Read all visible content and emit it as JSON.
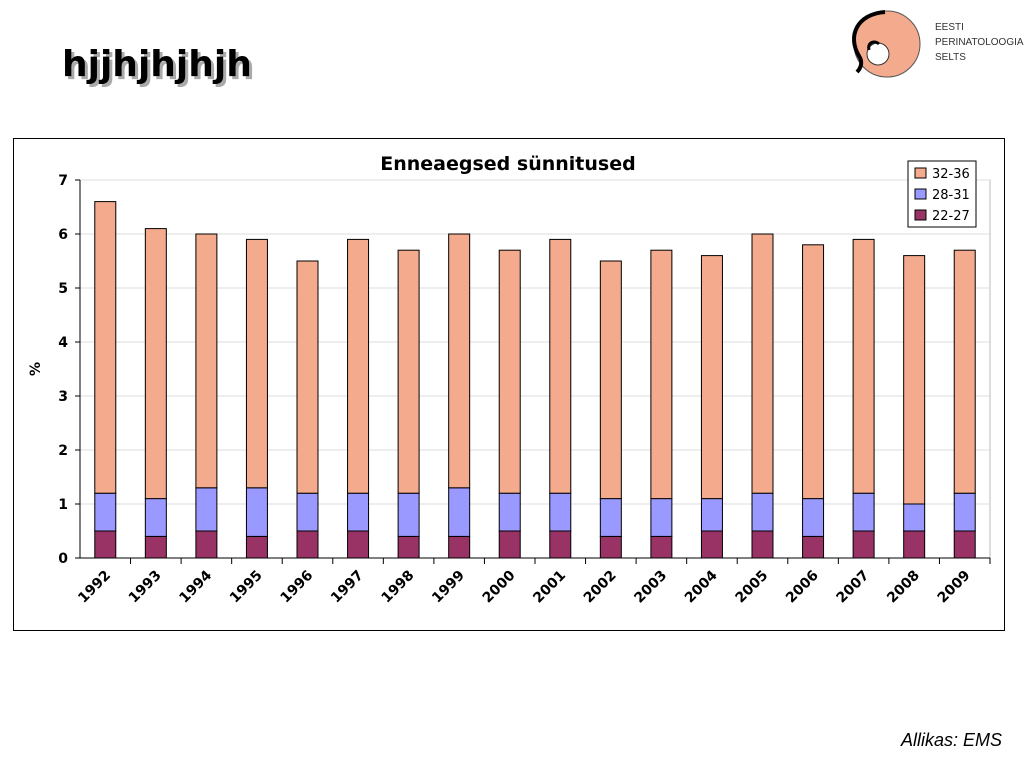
{
  "slide": {
    "title": "hjjhjhjhjh",
    "source": "Allikas: EMS"
  },
  "logo": {
    "lines": [
      "EESTI",
      "PERINATOLOOGIA",
      "SELTS"
    ]
  },
  "colors": {
    "32-36": "#f4aa8c",
    "28-31": "#9999ff",
    "22-27": "#993366"
  },
  "chart_data": {
    "type": "bar",
    "stacked": true,
    "title": "Enneaegsed sünnitused",
    "xlabel": "",
    "ylabel": "%",
    "ylim": [
      0,
      7
    ],
    "yticks": [
      "0",
      "1",
      "2",
      "3",
      "4",
      "5",
      "6",
      "7"
    ],
    "grid": true,
    "legend_position": "top-right",
    "categories": [
      "1992",
      "1993",
      "1994",
      "1995",
      "1996",
      "1997",
      "1998",
      "1999",
      "2000",
      "2001",
      "2002",
      "2003",
      "2004",
      "2005",
      "2006",
      "2007",
      "2008",
      "2009"
    ],
    "series": [
      {
        "name": "22-27",
        "values": [
          0.5,
          0.4,
          0.5,
          0.4,
          0.5,
          0.5,
          0.4,
          0.4,
          0.5,
          0.5,
          0.4,
          0.4,
          0.5,
          0.5,
          0.4,
          0.5,
          0.5,
          0.5
        ]
      },
      {
        "name": "28-31",
        "values": [
          0.7,
          0.7,
          0.8,
          0.9,
          0.7,
          0.7,
          0.8,
          0.9,
          0.7,
          0.7,
          0.7,
          0.7,
          0.6,
          0.7,
          0.7,
          0.7,
          0.5,
          0.7
        ]
      },
      {
        "name": "32-36",
        "values": [
          5.4,
          5.0,
          4.7,
          4.6,
          4.3,
          4.7,
          4.5,
          4.7,
          4.5,
          4.7,
          4.4,
          4.6,
          4.5,
          4.8,
          4.7,
          4.7,
          4.6,
          4.5
        ]
      }
    ],
    "legend": [
      "32-36",
      "28-31",
      "22-27"
    ]
  }
}
